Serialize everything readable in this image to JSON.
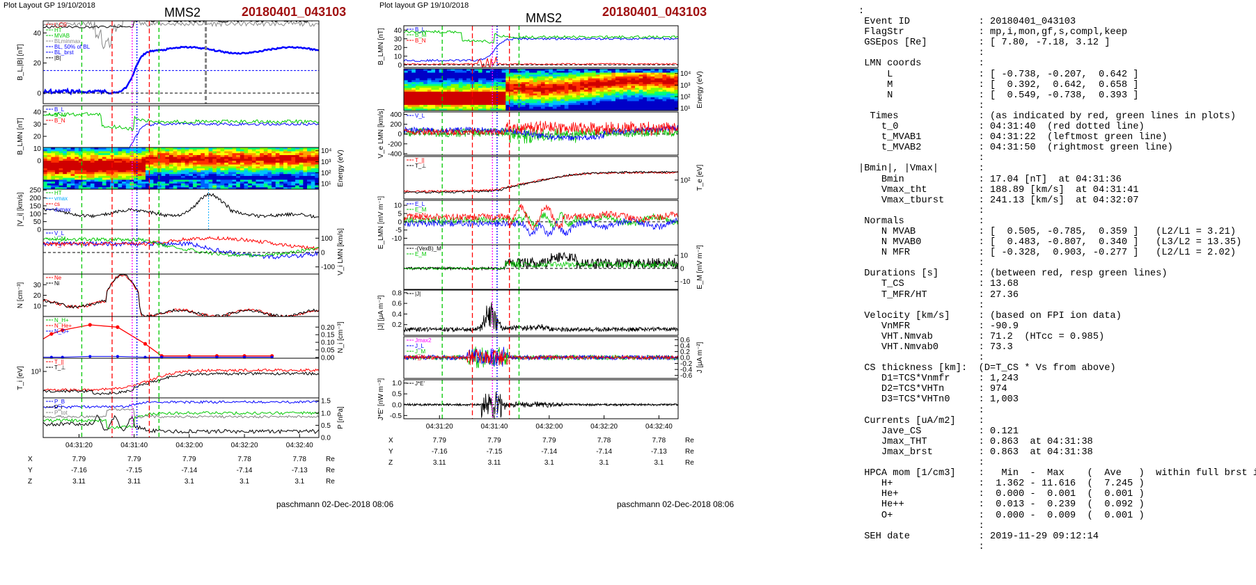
{
  "left_page": {
    "header": "Plot Layout GP 19/10/2018",
    "probe": "MMS2",
    "event_id": "20180401_043103",
    "footer": "paschmann 02-Dec-2018 08:06",
    "colors": {
      "red": "#ff0000",
      "green": "#00c800",
      "blue": "#0000ff",
      "magenta": "#ff00ff",
      "black": "#000000"
    },
    "panels": [
      {
        "id": "b-total",
        "ylabel": "B_L,|B| [nT]",
        "side": "left",
        "ticks": [
          {
            "v": 0,
            "t": "0"
          },
          {
            "v": 20,
            "t": "20"
          },
          {
            "v": 40,
            "t": "40"
          }
        ],
        "ylim": [
          -7,
          48
        ],
        "legend": [
          {
            "t": "t_CS",
            "c": "#ff0000"
          },
          {
            "t": "HT",
            "c": "#00c800"
          },
          {
            "t": "MVAB",
            "c": "#00c800"
          },
          {
            "t": "BLminmax",
            "c": "#888888"
          },
          {
            "t": "BL, 50% of BL",
            "c": "#0000ff"
          },
          {
            "t": "BL_brst",
            "c": "#0000ff"
          },
          {
            "t": "|B|",
            "c": "#000000"
          }
        ]
      },
      {
        "id": "b-lmn",
        "ylabel": "B_LMN [nT]",
        "side": "left",
        "ticks": [
          {
            "v": 0,
            "t": "0"
          },
          {
            "v": 10,
            "t": "10"
          },
          {
            "v": 20,
            "t": "20"
          },
          {
            "v": 30,
            "t": "30"
          },
          {
            "v": 40,
            "t": "40"
          }
        ],
        "ylim": [
          -5,
          45
        ],
        "legend": [
          {
            "t": "B_L",
            "c": "#0000ff"
          },
          {
            "t": "B_M",
            "c": "#00c800"
          },
          {
            "t": "B_N",
            "c": "#ff0000"
          }
        ]
      },
      {
        "id": "ion-spec",
        "ylabel": "Energy (eV)",
        "side": "right",
        "ticks": [
          {
            "v": 1,
            "t": "10¹"
          },
          {
            "v": 2,
            "t": "10²"
          },
          {
            "v": 3,
            "t": "10³"
          },
          {
            "v": 4,
            "t": "10⁴"
          }
        ],
        "ylim": [
          0.5,
          4.3
        ]
      },
      {
        "id": "vi-mag",
        "ylabel": "|V_i| [km/s]",
        "side": "left",
        "ticks": [
          {
            "v": 0,
            "t": "0"
          },
          {
            "v": 50,
            "t": "50"
          },
          {
            "v": 100,
            "t": "100"
          },
          {
            "v": 150,
            "t": "150"
          },
          {
            "v": 200,
            "t": "200"
          },
          {
            "v": 250,
            "t": "250"
          }
        ],
        "ylim": [
          0,
          255
        ],
        "legend": [
          {
            "t": "HT",
            "c": "#00c800"
          },
          {
            "t": "vmax",
            "c": "#00aaff"
          },
          {
            "t": "cs",
            "c": "#ff0000"
          },
          {
            "t": "dvmax",
            "c": "#0000ff"
          }
        ]
      },
      {
        "id": "vi-lmn",
        "ylabel": "V_i LMN [km/s]",
        "side": "right",
        "ticks": [
          {
            "v": -100,
            "t": "-100"
          },
          {
            "v": 0,
            "t": "0"
          },
          {
            "v": 100,
            "t": "100"
          }
        ],
        "ylim": [
          -150,
          160
        ],
        "legend": [
          {
            "t": "V_L",
            "c": "#0000ff"
          },
          {
            "t": "V_M",
            "c": "#00c800"
          },
          {
            "t": "V_N",
            "c": "#ff0000"
          }
        ]
      },
      {
        "id": "density",
        "ylabel": "N [cm⁻³]",
        "side": "left",
        "ticks": [
          {
            "v": 10,
            "t": "10"
          },
          {
            "v": 20,
            "t": "20"
          },
          {
            "v": 30,
            "t": "30"
          }
        ],
        "ylim": [
          0,
          40
        ],
        "legend": [
          {
            "t": "Ne",
            "c": "#ff0000"
          },
          {
            "t": "Ni",
            "c": "#000000"
          }
        ]
      },
      {
        "id": "hpca",
        "ylabel": "N_i [cm⁻³]",
        "side": "right",
        "ticks": [
          {
            "v": 0,
            "t": "0.00"
          },
          {
            "v": 0.05,
            "t": "0.05"
          },
          {
            "v": 0.1,
            "t": "0.10"
          },
          {
            "v": 0.15,
            "t": "0.15"
          },
          {
            "v": 0.2,
            "t": "0.20"
          }
        ],
        "ylim": [
          -0.005,
          0.27
        ],
        "legend": [
          {
            "t": "N_H+",
            "c": "#00c800"
          },
          {
            "t": "N_He+",
            "c": "#ff0000"
          },
          {
            "t": "N_O+",
            "c": "#0000ff"
          }
        ]
      },
      {
        "id": "ti",
        "ylabel": "T_i [eV]",
        "side": "left",
        "ticks": [
          {
            "v": 3,
            "t": "10³"
          }
        ],
        "ylim": [
          2.4,
          3.3
        ],
        "legend": [
          {
            "t": "T_||",
            "c": "#ff0000"
          },
          {
            "t": "T_⊥",
            "c": "#000000"
          }
        ]
      },
      {
        "id": "pressure",
        "ylabel": "P [nPa]",
        "side": "right",
        "ticks": [
          {
            "v": 0,
            "t": "0.0"
          },
          {
            "v": 0.5,
            "t": "0.5"
          },
          {
            "v": 1,
            "t": "1.0"
          },
          {
            "v": 1.5,
            "t": "1.5"
          }
        ],
        "ylim": [
          0,
          1.62
        ],
        "legend": [
          {
            "t": "P_B",
            "c": "#0000ff"
          },
          {
            "t": "P_i",
            "c": "#000000"
          },
          {
            "t": "P_tot",
            "c": "#808080"
          }
        ]
      }
    ],
    "time_ticks": [
      "04:31:20",
      "04:31:40",
      "04:32:00",
      "04:32:20",
      "04:32:40"
    ],
    "ephem": {
      "rows": [
        {
          "label": "X",
          "values": [
            "7.79",
            "7.79",
            "7.79",
            "7.78",
            "7.78"
          ],
          "unit": "Re"
        },
        {
          "label": "Y",
          "values": [
            "-7.16",
            "-7.15",
            "-7.14",
            "-7.14",
            "-7.13"
          ],
          "unit": "Re"
        },
        {
          "label": "Z",
          "values": [
            "3.11",
            "3.11",
            "3.1",
            "3.1",
            "3.1"
          ],
          "unit": "Re"
        }
      ]
    }
  },
  "right_page": {
    "header": "Plot layout GP 19/10/2018",
    "probe": "MMS2",
    "event_id": "20180401_043103",
    "footer": "paschmann 02-Dec-2018 08:06",
    "panels": [
      {
        "id": "b-lmn",
        "ylabel": "B_LMN [nT]",
        "side": "left",
        "ticks": [
          {
            "v": 0,
            "t": "0"
          },
          {
            "v": 10,
            "t": "10"
          },
          {
            "v": 20,
            "t": "20"
          },
          {
            "v": 30,
            "t": "30"
          },
          {
            "v": 40,
            "t": "40"
          }
        ],
        "ylim": [
          -3,
          45
        ],
        "legend": [
          {
            "t": "B_L",
            "c": "#0000ff"
          },
          {
            "t": "B_M",
            "c": "#00c800"
          },
          {
            "t": "B_N",
            "c": "#ff0000"
          }
        ]
      },
      {
        "id": "e-spec",
        "ylabel": "Energy (eV)",
        "side": "right",
        "ticks": [
          {
            "v": 1,
            "t": "10¹"
          },
          {
            "v": 2,
            "t": "10²"
          },
          {
            "v": 3,
            "t": "10³"
          },
          {
            "v": 4,
            "t": "10⁴"
          }
        ],
        "ylim": [
          0.8,
          4.4
        ]
      },
      {
        "id": "ve-lmn",
        "ylabel": "V_e LMN [km/s]",
        "side": "left",
        "ticks": [
          {
            "v": -400,
            "t": "-400"
          },
          {
            "v": -200,
            "t": "-200"
          },
          {
            "v": 0,
            "t": "0"
          },
          {
            "v": 200,
            "t": "200"
          },
          {
            "v": 400,
            "t": "400"
          }
        ],
        "ylim": [
          -430,
          450
        ],
        "legend": [
          {
            "t": "V_L",
            "c": "#0000ff"
          }
        ]
      },
      {
        "id": "te",
        "ylabel": "T_e [eV]",
        "side": "right",
        "ticks": [
          {
            "v": 2,
            "t": "10²"
          }
        ],
        "ylim": [
          1.6,
          2.5
        ],
        "legend": [
          {
            "t": "T_||",
            "c": "#ff0000"
          },
          {
            "t": "T_⊥",
            "c": "#000000"
          }
        ]
      },
      {
        "id": "e-lmn",
        "ylabel": "E_LMN [mV m⁻¹]",
        "side": "left",
        "ticks": [
          {
            "v": -10,
            "t": "-10"
          },
          {
            "v": -5,
            "t": "-5"
          },
          {
            "v": 0,
            "t": "0"
          },
          {
            "v": 5,
            "t": "5"
          },
          {
            "v": 10,
            "t": "10"
          }
        ],
        "ylim": [
          -14,
          13
        ],
        "legend": [
          {
            "t": "E_L",
            "c": "#0000ff"
          },
          {
            "t": "E_M",
            "c": "#00c800"
          },
          {
            "t": "E_N",
            "c": "#ff0000"
          }
        ]
      },
      {
        "id": "em",
        "ylabel": "E_M [mV m⁻²]",
        "side": "right",
        "ticks": [
          {
            "v": -10,
            "t": "-10"
          },
          {
            "v": 0,
            "t": "0"
          },
          {
            "v": 10,
            "t": "10"
          }
        ],
        "ylim": [
          -16,
          18
        ],
        "legend": [
          {
            "t": "-(VexB)_M",
            "c": "#000000"
          },
          {
            "t": "E_M",
            "c": "#00c800"
          }
        ]
      },
      {
        "id": "j-mag",
        "ylabel": "|J| [μA m⁻²]",
        "side": "left",
        "ticks": [
          {
            "v": 0.2,
            "t": "0.2"
          },
          {
            "v": 0.4,
            "t": "0.4"
          },
          {
            "v": 0.6,
            "t": "0.6"
          },
          {
            "v": 0.8,
            "t": "0.8"
          }
        ],
        "ylim": [
          0,
          0.85
        ],
        "legend": [
          {
            "t": "|J|",
            "c": "#000000"
          }
        ]
      },
      {
        "id": "j-lmn",
        "ylabel": "J [μA m⁻²]",
        "side": "right",
        "ticks": [
          {
            "v": -0.6,
            "t": "-0.6"
          },
          {
            "v": -0.4,
            "t": "-0.4"
          },
          {
            "v": -0.2,
            "t": "-0.2"
          },
          {
            "v": 0,
            "t": "0.0"
          },
          {
            "v": 0.2,
            "t": "0.2"
          },
          {
            "v": 0.4,
            "t": "0.4"
          },
          {
            "v": 0.6,
            "t": "0.6"
          }
        ],
        "ylim": [
          -0.7,
          0.7
        ],
        "legend": [
          {
            "t": "Jmax2",
            "c": "#ff00ff"
          },
          {
            "t": "J_L",
            "c": "#0000ff"
          },
          {
            "t": "J_M",
            "c": "#00c800"
          },
          {
            "t": "J_N",
            "c": "#ff0000"
          }
        ]
      },
      {
        "id": "jdote",
        "ylabel": "J*E' [nW m⁻³]",
        "side": "left",
        "ticks": [
          {
            "v": -0.5,
            "t": "-0.5"
          },
          {
            "v": 0,
            "t": "0.0"
          },
          {
            "v": 0.5,
            "t": "0.5"
          },
          {
            "v": 1,
            "t": "1.0"
          }
        ],
        "ylim": [
          -0.65,
          1.15
        ],
        "legend": [
          {
            "t": "J*E'",
            "c": "#000000"
          }
        ]
      }
    ],
    "time_ticks": [
      "04:31:20",
      "04:31:40",
      "04:32:00",
      "04:32:20",
      "04:32:40"
    ],
    "ephem": {
      "rows": [
        {
          "label": "X",
          "values": [
            "7.79",
            "7.79",
            "7.79",
            "7.78",
            "7.78"
          ],
          "unit": "Re"
        },
        {
          "label": "Y",
          "values": [
            "-7.16",
            "-7.15",
            "-7.14",
            "-7.14",
            "-7.13"
          ],
          "unit": "Re"
        },
        {
          "label": "Z",
          "values": [
            "3.11",
            "3.11",
            "3.1",
            "3.1",
            "3.1"
          ],
          "unit": "Re"
        }
      ]
    }
  },
  "info_lines": [
    ":",
    " Event ID            : 20180401_043103",
    " FlagStr             : mp,i,mon,gf,s,compl,keep",
    " GSEpos [Re]         : [ 7.80, -7.18, 3.12 ]",
    "                     :",
    " LMN coords          :",
    "     L               : [ -0.738, -0.207,  0.642 ]",
    "     M               : [  0.392,  0.642,  0.658 ]",
    "     N               : [  0.549, -0.738,  0.393 ]",
    "                     :",
    "  Times              : (as indicated by red, green lines in plots)",
    "    t_0              : 04:31:40  (red dotted line)",
    "    t_MVAB1          : 04:31:22  (leftmost green line)",
    "    t_MVAB2          : 04:31:50  (rightmost green line)",
    "                     :",
    "|Bmin|, |Vmax|       :",
    "    Bmin             : 17.04 [nT]  at 04:31:36",
    "    Vmax_tht         : 188.89 [km/s]  at 04:31:41",
    "    Vmax_tburst      : 241.13 [km/s]  at 04:32:07",
    "                     :",
    " Normals             :",
    "    N MVAB           : [  0.505, -0.785,  0.359 ]   (L2/L1 = 3.21)",
    "    N MVAB0          : [  0.483, -0.807,  0.340 ]   (L3/L2 = 13.35)",
    "    N MFR            : [ -0.328,  0.903, -0.277 ]   (L2/L1 = 2.02)",
    "                     :",
    " Durations [s]       : (between red, resp green lines)",
    "    T_CS             : 13.68",
    "    T_MFR/HT         : 27.36",
    "                     :",
    " Velocity [km/s]     : (based on FPI ion data)",
    "    VnMFR            : -90.9",
    "    VHT.Nmvab        : 71.2  (HTcc = 0.985)",
    "    VHT.Nmvab0       : 73.3",
    "                     :",
    " CS thickness [km]:  (D=T_CS * Vs from above)",
    "    D1=TCS*Vnmfr     : 1,243",
    "    D2=TCS*VHTn      : 974",
    "    D3=TCS*VHTn0     : 1,003",
    "                     :",
    " Currents [uA/m2]    :",
    "    Jave_CS          : 0.121",
    "    Jmax_THT         : 0.863  at 04:31:38",
    "    Jmax_brst        : 0.863  at 04:31:38",
    "                     :",
    " HPCA mom [1/cm3]    :   Min  -  Max    (  Ave   )  within full brst int",
    "    H+               :  1.362 - 11.616  (  7.245 )",
    "    He+              :  0.000 -  0.001  (  0.001 )",
    "    He++             :  0.013 -  0.239  (  0.092 )",
    "    O+               :  0.000 -  0.009  (  0.001 )",
    "                     :",
    " SEH date            : 2019-11-29 09:12:14",
    "                     :"
  ]
}
